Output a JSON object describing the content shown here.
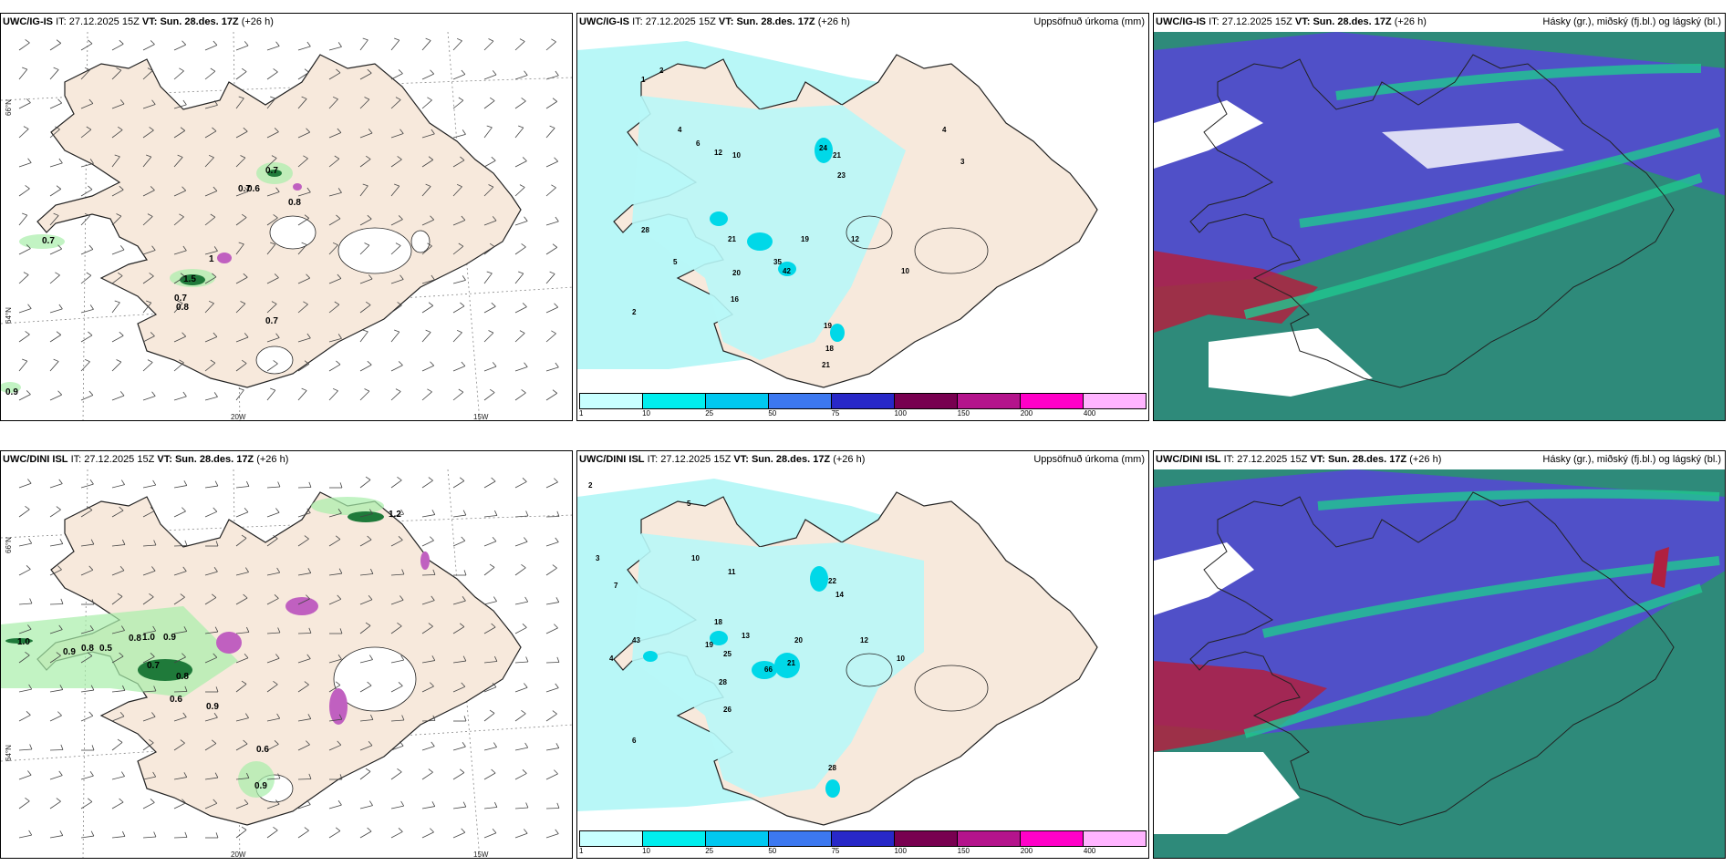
{
  "rows": [
    {
      "model": "UWC/IG-IS",
      "it_label": "IT:",
      "it_value": "27.12.2025 15Z",
      "vt_label": "VT:",
      "vt_value": "Sun. 28.des. 17Z",
      "lead": "(+26 h)"
    },
    {
      "model": "UWC/DINI ISL",
      "it_label": "IT:",
      "it_value": "27.12.2025 15Z",
      "vt_label": "VT:",
      "vt_value": "Sun. 28.des. 17Z",
      "lead": "(+26 h)"
    }
  ],
  "precip_title": "Uppsöfnuð úrkoma (mm)",
  "cloud_title": "Hásky (gr.), miðský (fj.bl.) og lágský (bl.)",
  "axes": {
    "lat_66": "66°N",
    "lat_64": "64°N",
    "lon_20": "20W",
    "lon_15": "15W"
  },
  "colorbar": {
    "ticks": [
      "1",
      "10",
      "25",
      "50",
      "75",
      "100",
      "150",
      "200",
      "400"
    ],
    "colors": [
      "#c8ffff",
      "#00eeee",
      "#00c8f0",
      "#3c78f0",
      "#2828c8",
      "#780050",
      "#b4148c",
      "#ff00c8",
      "#ffb4ff"
    ]
  },
  "colors": {
    "land": "#f7e9dc",
    "precip_light": "#b8f7f7",
    "precip_mid": "#00e0e8",
    "cloud_high": "#5050c8",
    "cloud_mid": "#2e8a7a",
    "cloud_low_green": "#20c890",
    "cloud_red": "#b02040"
  },
  "wind_values_top": [
    "0.7",
    "0.7",
    "0.6",
    "0.8",
    "0.7",
    "1",
    "1.5",
    "0.7",
    "0.8",
    "0.7",
    "0.9"
  ],
  "wind_values_bottom": [
    "1.0",
    "0.9",
    "0.8",
    "0.5",
    "0.8",
    "1.0",
    "0.9",
    "0.7",
    "0.8",
    "0.6",
    "0.9",
    "0.6",
    "0.9",
    "1.2"
  ],
  "precip_values_top": [
    "1",
    "2",
    "4",
    "6",
    "12",
    "10",
    "24",
    "21",
    "23",
    "28",
    "21",
    "35",
    "42",
    "19",
    "20",
    "16",
    "12",
    "10",
    "19",
    "18",
    "21",
    "4",
    "3",
    "2",
    "5"
  ],
  "precip_values_bottom": [
    "5",
    "10",
    "11",
    "18",
    "13",
    "19",
    "25",
    "66",
    "28",
    "26",
    "22",
    "14",
    "21",
    "20",
    "12",
    "10",
    "28",
    "43",
    "7",
    "3",
    "2",
    "4",
    "6"
  ]
}
